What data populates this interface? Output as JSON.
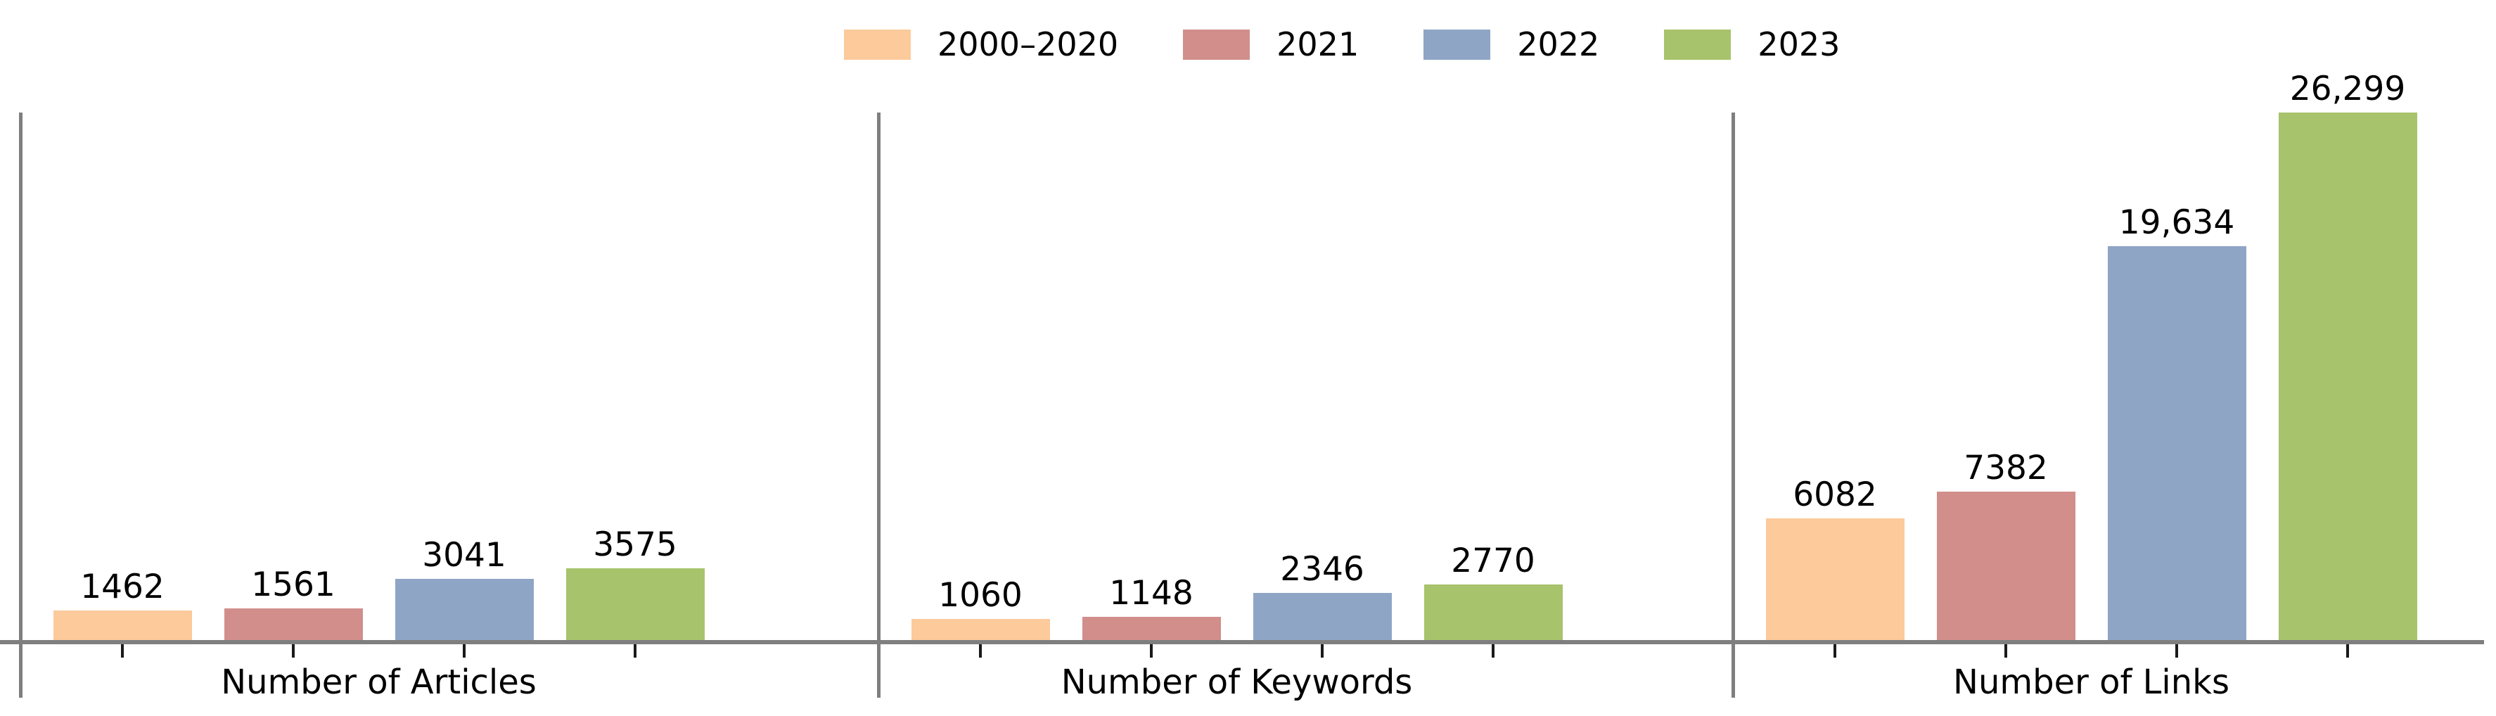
{
  "figure": {
    "background": "#ffffff",
    "axis_color": "#7f7f7f",
    "tick_color": "#1a1a1a",
    "text_color": "#000000"
  },
  "legend": {
    "position": "top-center",
    "items": [
      {
        "label": "2000–2020",
        "color": "#FCCA9B"
      },
      {
        "label": "2021",
        "color": "#D18E8B"
      },
      {
        "label": "2022",
        "color": "#8FA5C6"
      },
      {
        "label": "2023",
        "color": "#A7C36B"
      }
    ]
  },
  "chart_data": {
    "type": "bar",
    "title": "",
    "grid": false,
    "legend_position": "top",
    "ylim": [
      0,
      26300
    ],
    "y_axis_visible": false,
    "series_names": [
      "2000–2020",
      "2021",
      "2022",
      "2023"
    ],
    "series_colors": [
      "#FCCA9B",
      "#D18E8B",
      "#8FA5C6",
      "#A7C36B"
    ],
    "panels": [
      {
        "xlabel": "Number of Articles",
        "values": [
          1462,
          1561,
          3041,
          3575
        ],
        "value_labels": [
          "1462",
          "1561",
          "3041",
          "3575"
        ]
      },
      {
        "xlabel": "Number of Keywords",
        "values": [
          1060,
          1148,
          2346,
          2770
        ],
        "value_labels": [
          "1060",
          "1148",
          "2346",
          "2770"
        ]
      },
      {
        "xlabel": "Number of Links",
        "values": [
          6082,
          7382,
          19634,
          26299
        ],
        "value_labels": [
          "6082",
          "7382",
          "19,634",
          "26,299"
        ]
      }
    ]
  }
}
